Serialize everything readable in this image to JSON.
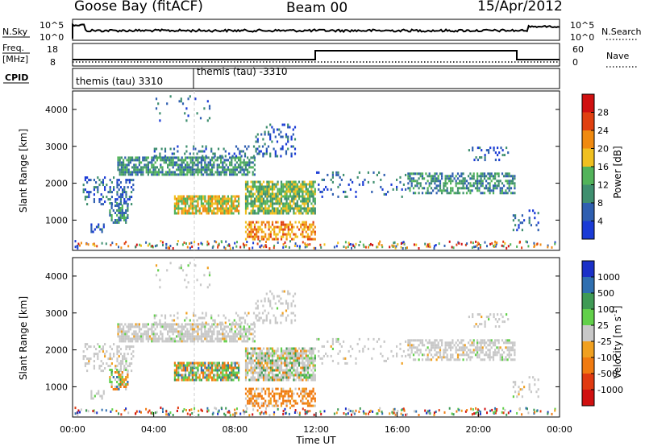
{
  "header": {
    "radar": "Goose Bay (fitACF)",
    "beam": "Beam 00",
    "date": "15/Apr/2012"
  },
  "noise_panel": {
    "left_label": "N.Sky",
    "right_label": "N.Search",
    "left_ticks": [
      "10^5",
      "10^0"
    ],
    "right_ticks": [
      "10^5",
      "10^0"
    ]
  },
  "freq_panel": {
    "left_label_1": "Freq.",
    "left_label_2": "[MHz]",
    "right_label": "Nave",
    "left_ticks": [
      "18",
      "8"
    ],
    "right_ticks": [
      "60",
      "0"
    ]
  },
  "cpid_panel": {
    "label": "CPID",
    "program_1": "themis (tau) 3310",
    "program_2": "themis (tau) -3310"
  },
  "chart_data": [
    {
      "type": "heatmap",
      "name": "power",
      "ylabel": "Slant Range [km]",
      "yticks": [
        1000,
        2000,
        3000,
        4000
      ],
      "ylim": [
        180,
        4500
      ],
      "xlim": [
        0,
        24
      ],
      "colorbar": {
        "label": "Power [dB]",
        "ticks": [
          "4",
          "8",
          "12",
          "16",
          "20",
          "24",
          "28"
        ],
        "colors": [
          "#1a3bd6",
          "#2f5fb0",
          "#3f8f6f",
          "#52b35a",
          "#f0c020",
          "#f08a10",
          "#e04010",
          "#d01010"
        ]
      }
    },
    {
      "type": "heatmap",
      "name": "velocity",
      "ylabel": "Slant Range [km]",
      "yticks": [
        1000,
        2000,
        3000,
        4000
      ],
      "ylim": [
        180,
        4500
      ],
      "xlim": [
        0,
        24
      ],
      "xlabel": "Time UT",
      "xticks": [
        "00:00",
        "04:00",
        "08:00",
        "12:00",
        "16:00",
        "20:00",
        "00:00"
      ],
      "colorbar": {
        "label": "Velocity [m s^-1]",
        "ticks": [
          "1000",
          "500",
          "100",
          "25",
          "-25",
          "-100",
          "-500",
          "-1000"
        ],
        "colors": [
          "#1a30c8",
          "#2f6fb0",
          "#3f9a55",
          "#62d04a",
          "#c8c8c8",
          "#f0a020",
          "#f07a10",
          "#e03a10",
          "#d01010"
        ]
      }
    }
  ]
}
